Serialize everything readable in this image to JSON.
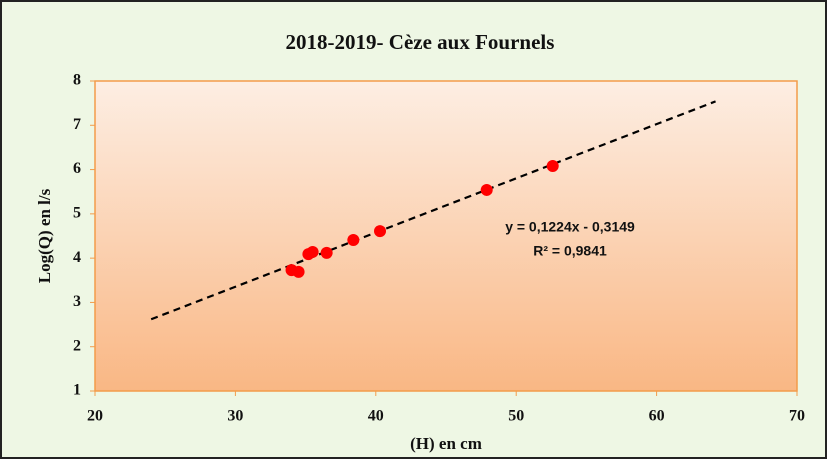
{
  "chart_data": {
    "type": "scatter",
    "title": "2018-2019- Cèze aux Fournels",
    "x_label": "(H) en cm",
    "y_label": "Log(Q) en l/s",
    "x": [
      34.0,
      34.5,
      35.2,
      35.5,
      36.5,
      38.4,
      40.3,
      47.9,
      52.6
    ],
    "series": [
      {
        "name": "Log(Q)",
        "color": "#ff0000",
        "values": [
          3.73,
          3.69,
          4.09,
          4.14,
          4.12,
          4.41,
          4.61,
          5.54,
          6.08
        ]
      }
    ],
    "trendline": {
      "x": [
        24,
        64.2
      ],
      "values": [
        2.62,
        7.54
      ],
      "color": "#000000"
    },
    "annotations": [
      "y = 0,1224x - 0,3149",
      "R² = 0,9841"
    ],
    "xlim": [
      20,
      70
    ],
    "xticks": [
      20,
      30,
      40,
      50,
      60,
      70
    ],
    "ylim": [
      1,
      8
    ],
    "yticks": [
      1,
      2,
      3,
      4,
      5,
      6,
      7,
      8
    ]
  }
}
